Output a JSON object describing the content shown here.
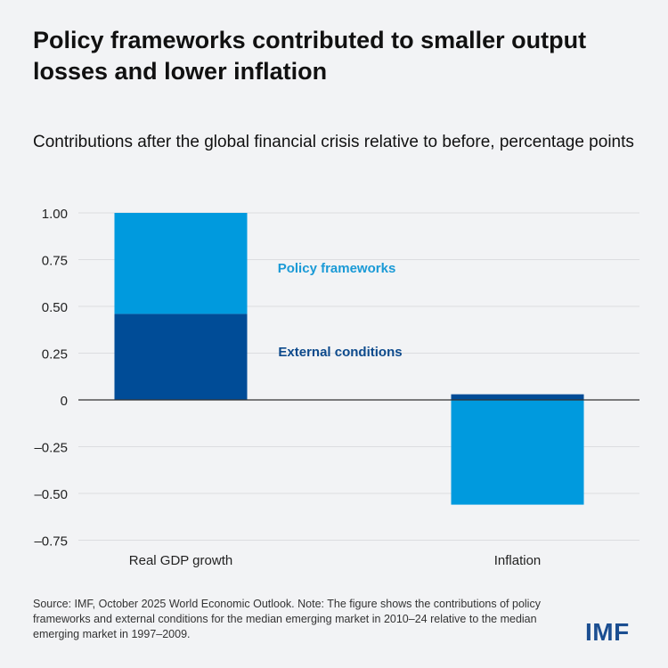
{
  "header": {
    "title": "Policy frameworks contributed to smaller output losses and lower inflation",
    "subtitle": "Contributions after the global financial crisis relative to before, percentage points"
  },
  "chart_data": {
    "type": "bar",
    "stacked": true,
    "categories": [
      "Real GDP growth",
      "Inflation"
    ],
    "series": [
      {
        "name": "External conditions",
        "values": [
          0.46,
          0.03
        ],
        "color": "#004c97"
      },
      {
        "name": "Policy frameworks",
        "values": [
          0.54,
          -0.56
        ],
        "color": "#009ade"
      }
    ],
    "ylim": [
      -0.75,
      1.0
    ],
    "yticks": [
      1.0,
      0.75,
      0.5,
      0.25,
      0,
      -0.25,
      -0.5,
      -0.75
    ],
    "ytick_labels": [
      "1.00",
      "0.75",
      "0.50",
      "0.25",
      "0",
      "–0.25",
      "–0.50",
      "–0.75"
    ],
    "grid": true,
    "legend": "inline labels between bars"
  },
  "footer": {
    "source": "Source: IMF, October 2025 World Economic Outlook. Note: The figure shows the contributions of policy frameworks and external conditions for the median emerging market in 2010–24 relative to the median emerging market in 1997–2009.",
    "logo": "IMF"
  }
}
